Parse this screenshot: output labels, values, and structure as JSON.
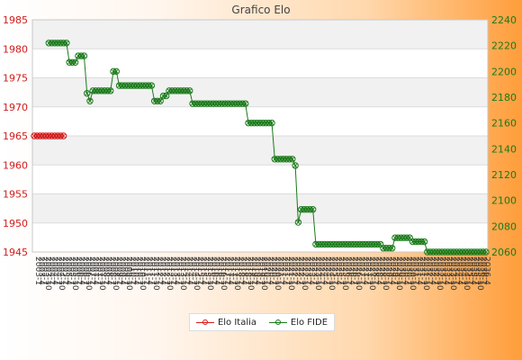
{
  "chart_data": {
    "type": "line",
    "title": "Grafico Elo",
    "xlabel": "",
    "ylabel": "",
    "grid": true,
    "legend_position": "bottom",
    "x_tick_labels": [
      "2003-1",
      "2003-4",
      "2003-7",
      "2003-10",
      "2004-1",
      "2004-4",
      "2004-7",
      "2004-10",
      "2005-1",
      "2005-4",
      "2005-7",
      "2005-10",
      "2006-1",
      "2006-4",
      "2006-7",
      "2006-10",
      "2007-1",
      "2007-4",
      "2007-7",
      "2007-10",
      "2008-1",
      "2008-4",
      "2008-7",
      "2008-10",
      "2009-1",
      "2009-4",
      "2009-7",
      "2009-10",
      "2010-1",
      "2010-4",
      "2010-7",
      "2010-10",
      "2011-1",
      "2011-4",
      "2011-7",
      "2011-10",
      "2012-1",
      "2012-4",
      "2012-7",
      "2012-10",
      "2013-1",
      "2013-4",
      "2013-7",
      "2013-10",
      "2014-1",
      "2014-4",
      "2014-7",
      "2014-10",
      "2015-1",
      "2015-4",
      "2015-7",
      "2015-10",
      "2016-1",
      "2016-4",
      "2016-7",
      "2016-10",
      "2017-1",
      "2017-4",
      "2017-7",
      "2017-10",
      "2018-1",
      "2018-4",
      "2018-7",
      "2018-10",
      "2019-1",
      "2019-4",
      "2019-7",
      "2019-10",
      "2020-1",
      "2020-4",
      "2020-7",
      "2020-10",
      "2021-1",
      "2021-4",
      "2021-7",
      "2021-10",
      "2022-1",
      "2022-4",
      "2022-7",
      "2022-10",
      "2023-1",
      "2023-4",
      "2023-7",
      "2023-10",
      "2024-1",
      "2024-4",
      "2024-7",
      "2024-10",
      "2025-1",
      "2025-4",
      "2025-7",
      "2025-10",
      "2026-1",
      "2026-4",
      "2026-7",
      "2026-10",
      "2027-1",
      "2027-4",
      "2027-7",
      "2027-10",
      "2028-1",
      "2028-4",
      "2028-7",
      "2028-10",
      "2029-1",
      "2029-4",
      "2029-7",
      "2029-10",
      "2030-1",
      "2030-4",
      "2030-7",
      "2030-10",
      "2031-1",
      "2031-4",
      "2031-7",
      "2031-10",
      "2032-1",
      "2032-4",
      "2032-7",
      "2032-10",
      "2033-1",
      "2033-4",
      "2033-7",
      "2033-10",
      "2034-1",
      "2034-4",
      "2034-7",
      "2034-10",
      "2035-1",
      "2035-4",
      "2035-7",
      "2035-10",
      "2036-1",
      "2036-4"
    ],
    "y_left": {
      "ylim": [
        1945,
        1985
      ],
      "ticks": [
        1945,
        1950,
        1955,
        1960,
        1965,
        1970,
        1975,
        1980,
        1985
      ],
      "color": "#d41a1a"
    },
    "y_right": {
      "ylim": [
        2060,
        2240
      ],
      "ticks": [
        2060,
        2080,
        2100,
        2120,
        2140,
        2160,
        2180,
        2200,
        2220,
        2240
      ],
      "color": "#1a7a1a"
    },
    "series": [
      {
        "name": "Elo Italia",
        "axis": "left",
        "color": "#d41a1a",
        "points": [
          [
            0,
            1965
          ],
          [
            1,
            1965
          ],
          [
            2,
            1965
          ],
          [
            3,
            1965
          ],
          [
            4,
            1965
          ],
          [
            5,
            1965
          ],
          [
            6,
            1965
          ],
          [
            7,
            1965
          ],
          [
            8,
            1965
          ],
          [
            9,
            1965
          ],
          [
            10,
            1965
          ]
        ]
      },
      {
        "name": "Elo FIDE",
        "axis": "right",
        "color": "#1a7a1a",
        "points": [
          [
            5,
            2222
          ],
          [
            6,
            2222
          ],
          [
            7,
            2222
          ],
          [
            8,
            2222
          ],
          [
            9,
            2222
          ],
          [
            10,
            2222
          ],
          [
            11,
            2222
          ],
          [
            12,
            2207
          ],
          [
            13,
            2207
          ],
          [
            14,
            2207
          ],
          [
            15,
            2212
          ],
          [
            16,
            2212
          ],
          [
            17,
            2212
          ],
          [
            18,
            2183
          ],
          [
            19,
            2177
          ],
          [
            20,
            2185
          ],
          [
            21,
            2185
          ],
          [
            22,
            2185
          ],
          [
            23,
            2185
          ],
          [
            24,
            2185
          ],
          [
            25,
            2185
          ],
          [
            26,
            2185
          ],
          [
            27,
            2200
          ],
          [
            28,
            2200
          ],
          [
            29,
            2189
          ],
          [
            30,
            2189
          ],
          [
            31,
            2189
          ],
          [
            32,
            2189
          ],
          [
            33,
            2189
          ],
          [
            34,
            2189
          ],
          [
            35,
            2189
          ],
          [
            36,
            2189
          ],
          [
            37,
            2189
          ],
          [
            38,
            2189
          ],
          [
            39,
            2189
          ],
          [
            40,
            2189
          ],
          [
            41,
            2177
          ],
          [
            42,
            2177
          ],
          [
            43,
            2177
          ],
          [
            44,
            2181
          ],
          [
            45,
            2181
          ],
          [
            46,
            2185
          ],
          [
            47,
            2185
          ],
          [
            48,
            2185
          ],
          [
            49,
            2185
          ],
          [
            50,
            2185
          ],
          [
            51,
            2185
          ],
          [
            52,
            2185
          ],
          [
            53,
            2185
          ],
          [
            54,
            2175
          ],
          [
            55,
            2175
          ],
          [
            56,
            2175
          ],
          [
            57,
            2175
          ],
          [
            58,
            2175
          ],
          [
            59,
            2175
          ],
          [
            60,
            2175
          ],
          [
            61,
            2175
          ],
          [
            62,
            2175
          ],
          [
            63,
            2175
          ],
          [
            64,
            2175
          ],
          [
            65,
            2175
          ],
          [
            66,
            2175
          ],
          [
            67,
            2175
          ],
          [
            68,
            2175
          ],
          [
            69,
            2175
          ],
          [
            70,
            2175
          ],
          [
            71,
            2175
          ],
          [
            72,
            2175
          ],
          [
            73,
            2160
          ],
          [
            74,
            2160
          ],
          [
            75,
            2160
          ],
          [
            76,
            2160
          ],
          [
            77,
            2160
          ],
          [
            78,
            2160
          ],
          [
            79,
            2160
          ],
          [
            80,
            2160
          ],
          [
            81,
            2160
          ],
          [
            82,
            2132
          ],
          [
            83,
            2132
          ],
          [
            84,
            2132
          ],
          [
            85,
            2132
          ],
          [
            86,
            2132
          ],
          [
            87,
            2132
          ],
          [
            88,
            2132
          ],
          [
            89,
            2127
          ],
          [
            90,
            2083
          ],
          [
            91,
            2093
          ],
          [
            92,
            2093
          ],
          [
            93,
            2093
          ],
          [
            94,
            2093
          ],
          [
            95,
            2093
          ],
          [
            96,
            2066
          ],
          [
            97,
            2066
          ],
          [
            98,
            2066
          ],
          [
            99,
            2066
          ],
          [
            100,
            2066
          ],
          [
            101,
            2066
          ],
          [
            102,
            2066
          ],
          [
            103,
            2066
          ],
          [
            104,
            2066
          ],
          [
            105,
            2066
          ],
          [
            106,
            2066
          ],
          [
            107,
            2066
          ],
          [
            108,
            2066
          ],
          [
            109,
            2066
          ],
          [
            110,
            2066
          ],
          [
            111,
            2066
          ],
          [
            112,
            2066
          ],
          [
            113,
            2066
          ],
          [
            114,
            2066
          ],
          [
            115,
            2066
          ],
          [
            116,
            2066
          ],
          [
            117,
            2066
          ],
          [
            118,
            2066
          ],
          [
            119,
            2063
          ],
          [
            120,
            2063
          ],
          [
            121,
            2063
          ],
          [
            122,
            2063
          ],
          [
            123,
            2071
          ],
          [
            124,
            2071
          ],
          [
            125,
            2071
          ],
          [
            126,
            2071
          ],
          [
            127,
            2071
          ],
          [
            128,
            2071
          ],
          [
            129,
            2068
          ],
          [
            130,
            2068
          ],
          [
            131,
            2068
          ],
          [
            132,
            2068
          ],
          [
            133,
            2068
          ],
          [
            134,
            2060
          ],
          [
            135,
            2060
          ],
          [
            136,
            2060
          ],
          [
            137,
            2060
          ],
          [
            138,
            2060
          ],
          [
            139,
            2060
          ],
          [
            140,
            2060
          ],
          [
            141,
            2060
          ],
          [
            142,
            2060
          ],
          [
            143,
            2060
          ],
          [
            144,
            2060
          ],
          [
            145,
            2060
          ],
          [
            146,
            2060
          ],
          [
            147,
            2060
          ],
          [
            148,
            2060
          ],
          [
            149,
            2060
          ],
          [
            150,
            2060
          ],
          [
            151,
            2060
          ],
          [
            152,
            2060
          ],
          [
            153,
            2060
          ],
          [
            154,
            2060
          ]
        ]
      }
    ]
  }
}
